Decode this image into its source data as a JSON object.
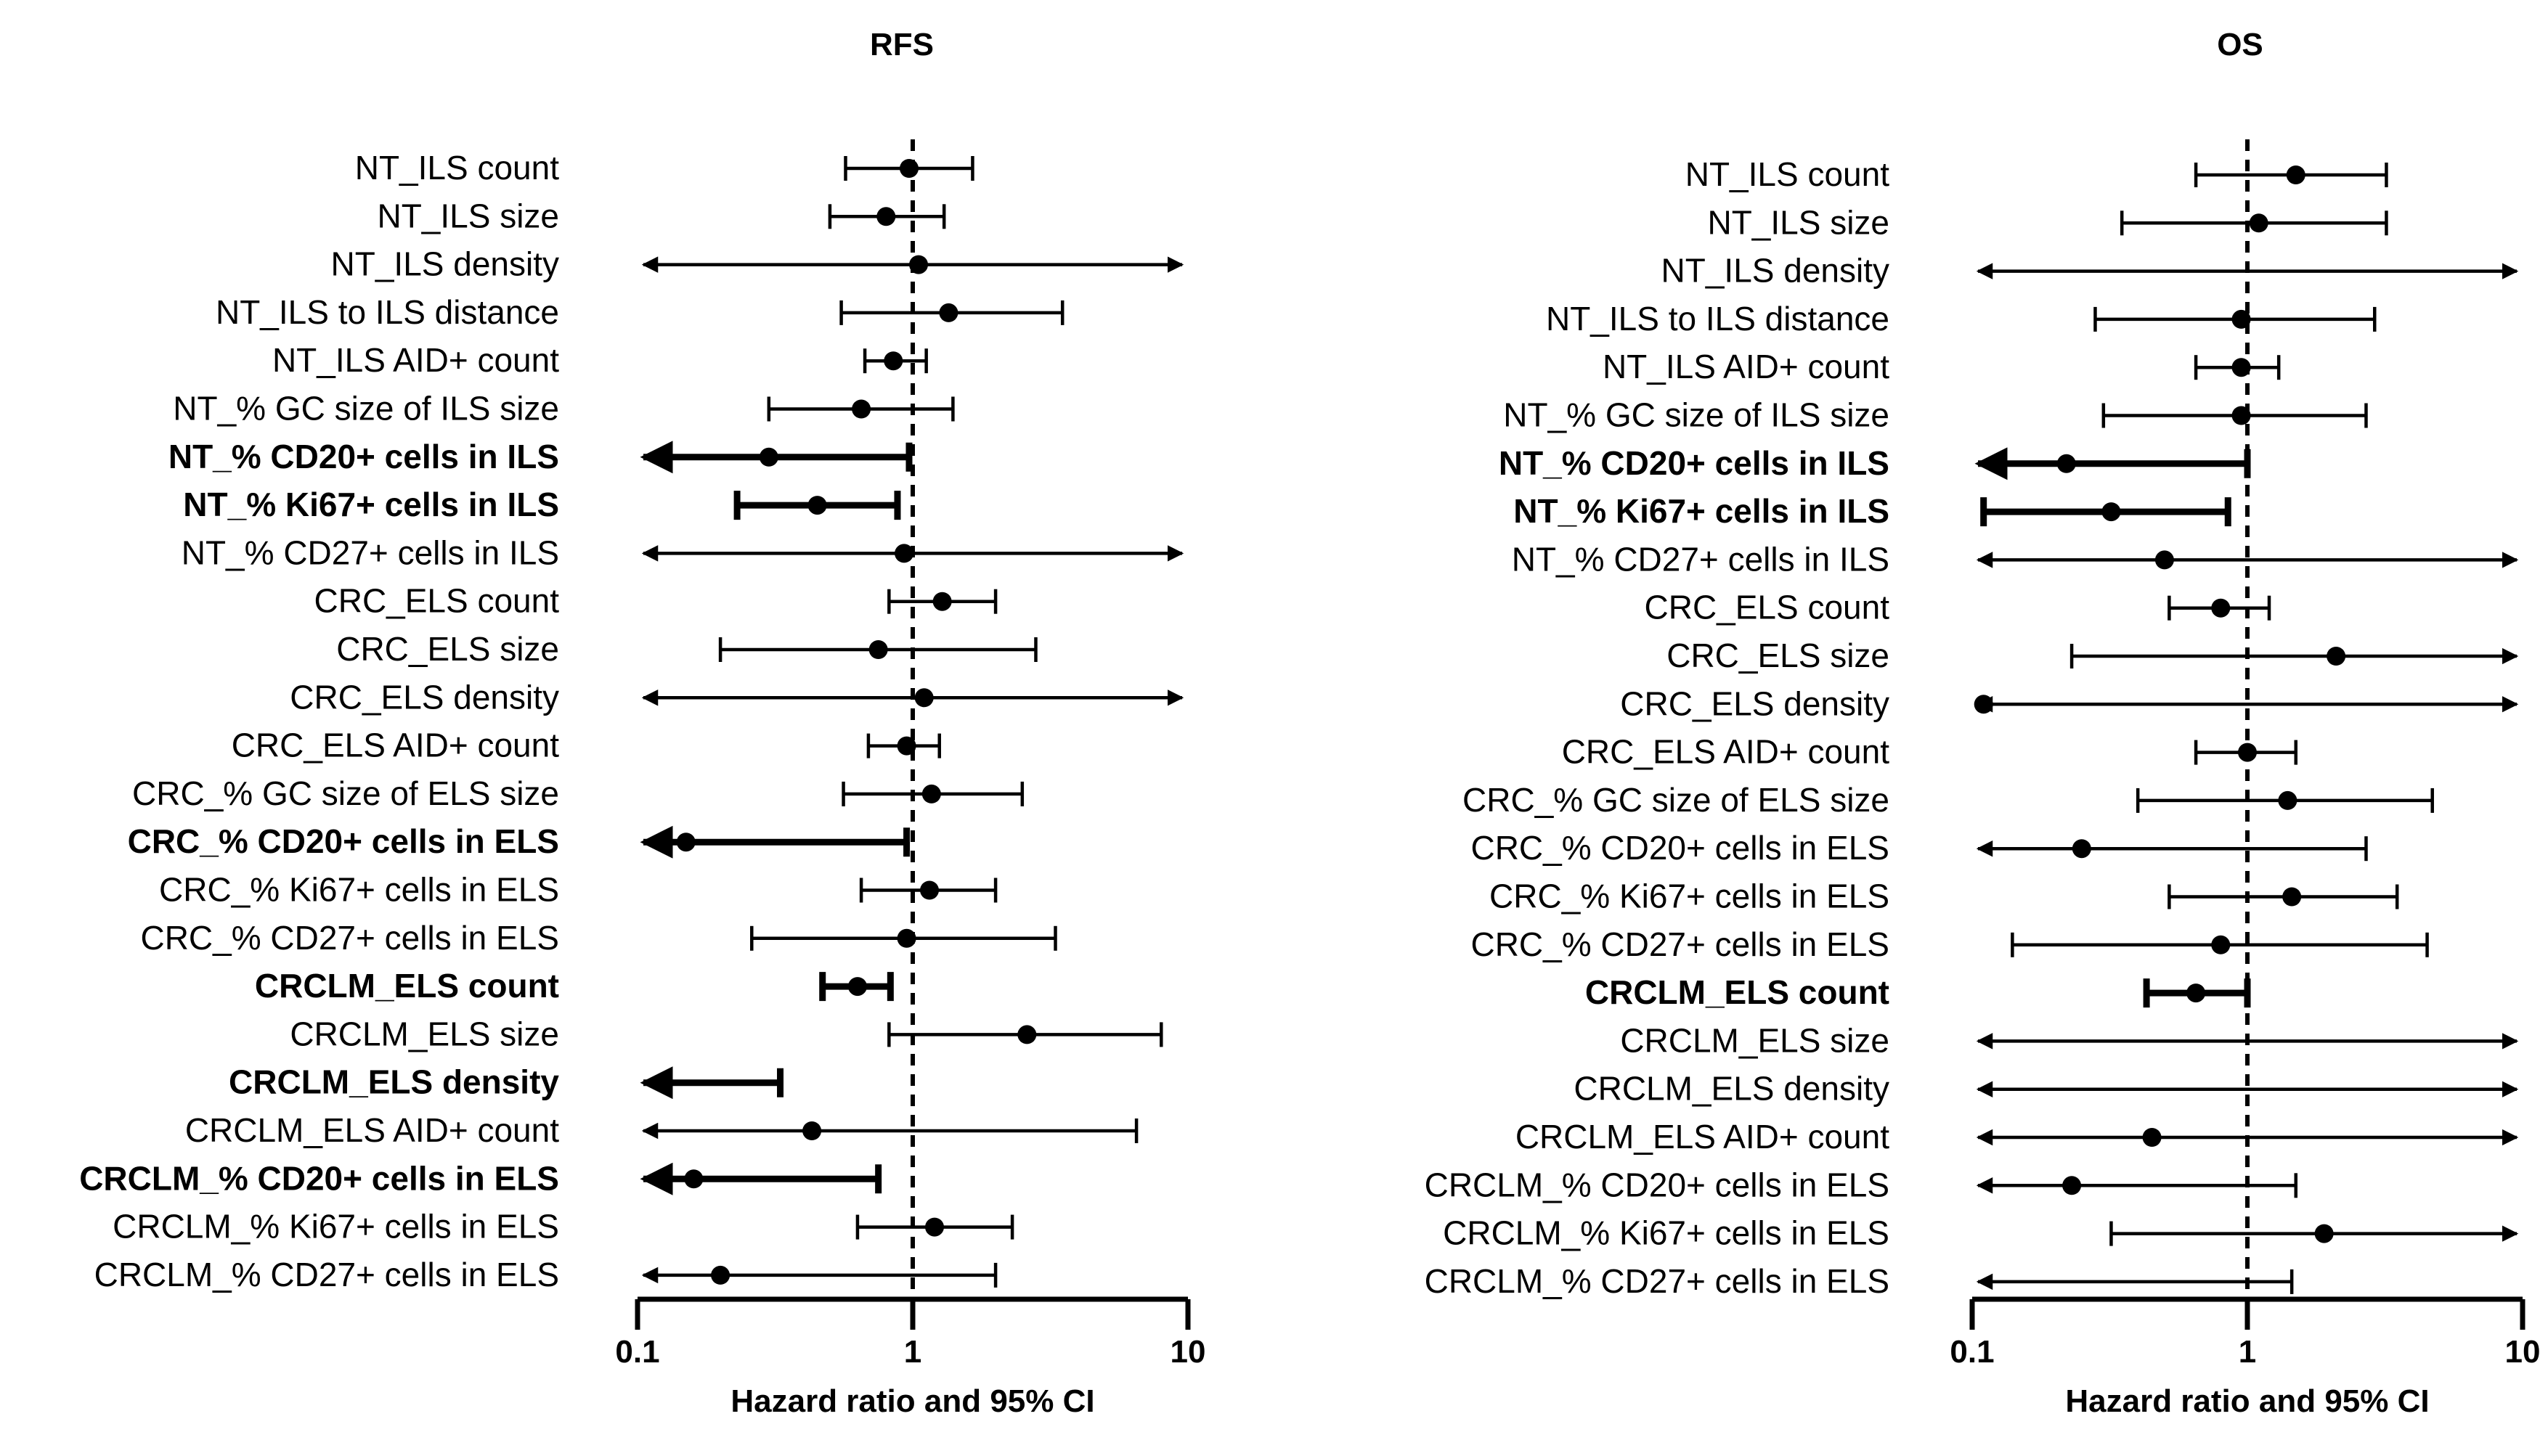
{
  "chart_data": [
    {
      "type": "forest",
      "title": "RFS",
      "xlabel": "Hazard ratio and 95% CI",
      "xscale": "log",
      "xlim": [
        0.1,
        10
      ],
      "xticks": [
        "0.1",
        "1",
        "10"
      ],
      "reference_line": 1,
      "rows": [
        {
          "label": "NT_ILS count",
          "hr": 0.97,
          "lo": 0.57,
          "hi": 1.65,
          "bold": false,
          "arrow_lo": false,
          "arrow_hi": false
        },
        {
          "label": "NT_ILS size",
          "hr": 0.8,
          "lo": 0.5,
          "hi": 1.3,
          "bold": false,
          "arrow_lo": false,
          "arrow_hi": false
        },
        {
          "label": "NT_ILS density",
          "hr": 1.05,
          "lo": null,
          "hi": null,
          "bold": false,
          "arrow_lo": true,
          "arrow_hi": true
        },
        {
          "label": "NT_ILS to ILS distance",
          "hr": 1.35,
          "lo": 0.55,
          "hi": 3.5,
          "bold": false,
          "arrow_lo": false,
          "arrow_hi": false
        },
        {
          "label": "NT_ILS AID+ count",
          "hr": 0.85,
          "lo": 0.67,
          "hi": 1.12,
          "bold": false,
          "arrow_lo": false,
          "arrow_hi": false
        },
        {
          "label": "NT_% GC size of ILS size",
          "hr": 0.65,
          "lo": 0.3,
          "hi": 1.4,
          "bold": false,
          "arrow_lo": false,
          "arrow_hi": false
        },
        {
          "label": "NT_% CD20+ cells in ILS",
          "hr": 0.3,
          "lo": null,
          "hi": 0.97,
          "bold": true,
          "arrow_lo": true,
          "arrow_hi": false
        },
        {
          "label": "NT_% Ki67+ cells in ILS",
          "hr": 0.45,
          "lo": 0.23,
          "hi": 0.88,
          "bold": true,
          "arrow_lo": false,
          "arrow_hi": false
        },
        {
          "label": "NT_% CD27+ cells in ILS",
          "hr": 0.93,
          "lo": null,
          "hi": null,
          "bold": false,
          "arrow_lo": true,
          "arrow_hi": true
        },
        {
          "label": "CRC_ELS count",
          "hr": 1.28,
          "lo": 0.82,
          "hi": 2.0,
          "bold": false,
          "arrow_lo": false,
          "arrow_hi": false
        },
        {
          "label": "CRC_ELS size",
          "hr": 0.75,
          "lo": 0.2,
          "hi": 2.8,
          "bold": false,
          "arrow_lo": false,
          "arrow_hi": false
        },
        {
          "label": "CRC_ELS density",
          "hr": 1.1,
          "lo": null,
          "hi": null,
          "bold": false,
          "arrow_lo": true,
          "arrow_hi": true
        },
        {
          "label": "CRC_ELS AID+ count",
          "hr": 0.95,
          "lo": 0.69,
          "hi": 1.25,
          "bold": false,
          "arrow_lo": false,
          "arrow_hi": false
        },
        {
          "label": "CRC_% GC size of ELS size",
          "hr": 1.17,
          "lo": 0.56,
          "hi": 2.5,
          "bold": false,
          "arrow_lo": false,
          "arrow_hi": false
        },
        {
          "label": "CRC_% CD20+ cells in ELS",
          "hr": 0.15,
          "lo": null,
          "hi": 0.95,
          "bold": true,
          "arrow_lo": true,
          "arrow_hi": false
        },
        {
          "label": "CRC_% Ki67+ cells in ELS",
          "hr": 1.15,
          "lo": 0.65,
          "hi": 2.0,
          "bold": false,
          "arrow_lo": false,
          "arrow_hi": false
        },
        {
          "label": "CRC_% CD27+ cells in ELS",
          "hr": 0.95,
          "lo": 0.26,
          "hi": 3.3,
          "bold": false,
          "arrow_lo": false,
          "arrow_hi": false
        },
        {
          "label": "CRCLM_ELS count",
          "hr": 0.63,
          "lo": 0.47,
          "hi": 0.83,
          "bold": true,
          "arrow_lo": false,
          "arrow_hi": false
        },
        {
          "label": "CRCLM_ELS size",
          "hr": 2.6,
          "lo": 0.82,
          "hi": 8.0,
          "bold": false,
          "arrow_lo": false,
          "arrow_hi": false
        },
        {
          "label": "CRCLM_ELS density",
          "hr": null,
          "lo": null,
          "hi": 0.33,
          "bold": true,
          "arrow_lo": true,
          "arrow_hi": false
        },
        {
          "label": "CRCLM_ELS AID+ count",
          "hr": 0.43,
          "lo": null,
          "hi": 6.5,
          "bold": false,
          "arrow_lo": true,
          "arrow_hi": false
        },
        {
          "label": "CRCLM_% CD20+ cells in ELS",
          "hr": 0.16,
          "lo": null,
          "hi": 0.75,
          "bold": true,
          "arrow_lo": true,
          "arrow_hi": false
        },
        {
          "label": "CRCLM_% Ki67+ cells in ELS",
          "hr": 1.2,
          "lo": 0.63,
          "hi": 2.3,
          "bold": false,
          "arrow_lo": false,
          "arrow_hi": false
        },
        {
          "label": "CRCLM_% CD27+ cells in ELS",
          "hr": 0.2,
          "lo": null,
          "hi": 2.0,
          "bold": false,
          "arrow_lo": true,
          "arrow_hi": false
        }
      ]
    },
    {
      "type": "forest",
      "title": "OS",
      "xlabel": "Hazard ratio and 95% CI",
      "xscale": "log",
      "xlim": [
        0.1,
        10
      ],
      "xticks": [
        "0.1",
        "1",
        "10"
      ],
      "reference_line": 1,
      "rows": [
        {
          "label": "NT_ILS count",
          "hr": 1.5,
          "lo": 0.65,
          "hi": 3.2,
          "bold": false,
          "arrow_lo": false,
          "arrow_hi": false
        },
        {
          "label": "NT_ILS size",
          "hr": 1.1,
          "lo": 0.35,
          "hi": 3.2,
          "bold": false,
          "arrow_lo": false,
          "arrow_hi": false
        },
        {
          "label": "NT_ILS density",
          "hr": null,
          "lo": null,
          "hi": null,
          "bold": false,
          "arrow_lo": true,
          "arrow_hi": true
        },
        {
          "label": "NT_ILS to ILS distance",
          "hr": 0.95,
          "lo": 0.28,
          "hi": 2.9,
          "bold": false,
          "arrow_lo": false,
          "arrow_hi": false
        },
        {
          "label": "NT_ILS AID+ count",
          "hr": 0.95,
          "lo": 0.65,
          "hi": 1.3,
          "bold": false,
          "arrow_lo": false,
          "arrow_hi": false
        },
        {
          "label": "NT_% GC size of ILS size",
          "hr": 0.95,
          "lo": 0.3,
          "hi": 2.7,
          "bold": false,
          "arrow_lo": false,
          "arrow_hi": false
        },
        {
          "label": "NT_% CD20+ cells in ILS",
          "hr": 0.22,
          "lo": null,
          "hi": 1.0,
          "bold": true,
          "arrow_lo": true,
          "arrow_hi": false
        },
        {
          "label": "NT_% Ki67+ cells in ILS",
          "hr": 0.32,
          "lo": 0.11,
          "hi": 0.85,
          "bold": true,
          "arrow_lo": false,
          "arrow_hi": false
        },
        {
          "label": "NT_% CD27+ cells in ILS",
          "hr": 0.5,
          "lo": null,
          "hi": null,
          "bold": false,
          "arrow_lo": true,
          "arrow_hi": true
        },
        {
          "label": "CRC_ELS count",
          "hr": 0.8,
          "lo": 0.52,
          "hi": 1.2,
          "bold": false,
          "arrow_lo": false,
          "arrow_hi": false
        },
        {
          "label": "CRC_ELS size",
          "hr": 2.1,
          "lo": 0.23,
          "hi": null,
          "bold": false,
          "arrow_lo": false,
          "arrow_hi": true
        },
        {
          "label": "CRC_ELS density",
          "hr": 0.11,
          "lo": null,
          "hi": null,
          "bold": false,
          "arrow_lo": true,
          "arrow_hi": true
        },
        {
          "label": "CRC_ELS AID+ count",
          "hr": 1.0,
          "lo": 0.65,
          "hi": 1.5,
          "bold": false,
          "arrow_lo": false,
          "arrow_hi": false
        },
        {
          "label": "CRC_% GC size of ELS size",
          "hr": 1.4,
          "lo": 0.4,
          "hi": 4.7,
          "bold": false,
          "arrow_lo": false,
          "arrow_hi": false
        },
        {
          "label": "CRC_% CD20+ cells in ELS",
          "hr": 0.25,
          "lo": null,
          "hi": 2.7,
          "bold": false,
          "arrow_lo": true,
          "arrow_hi": false
        },
        {
          "label": "CRC_% Ki67+ cells in ELS",
          "hr": 1.45,
          "lo": 0.52,
          "hi": 3.5,
          "bold": false,
          "arrow_lo": false,
          "arrow_hi": false
        },
        {
          "label": "CRC_% CD27+ cells in ELS",
          "hr": 0.8,
          "lo": 0.14,
          "hi": 4.5,
          "bold": false,
          "arrow_lo": false,
          "arrow_hi": false
        },
        {
          "label": "CRCLM_ELS count",
          "hr": 0.65,
          "lo": 0.43,
          "hi": 1.0,
          "bold": true,
          "arrow_lo": false,
          "arrow_hi": false
        },
        {
          "label": "CRCLM_ELS size",
          "hr": null,
          "lo": null,
          "hi": null,
          "bold": false,
          "arrow_lo": true,
          "arrow_hi": true
        },
        {
          "label": "CRCLM_ELS density",
          "hr": null,
          "lo": null,
          "hi": null,
          "bold": false,
          "arrow_lo": true,
          "arrow_hi": true
        },
        {
          "label": "CRCLM_ELS AID+ count",
          "hr": 0.45,
          "lo": null,
          "hi": null,
          "bold": false,
          "arrow_lo": true,
          "arrow_hi": true
        },
        {
          "label": "CRCLM_% CD20+ cells in ELS",
          "hr": 0.23,
          "lo": null,
          "hi": 1.5,
          "bold": false,
          "arrow_lo": true,
          "arrow_hi": false
        },
        {
          "label": "CRCLM_% Ki67+ cells in ELS",
          "hr": 1.9,
          "lo": 0.32,
          "hi": null,
          "bold": false,
          "arrow_lo": false,
          "arrow_hi": true
        },
        {
          "label": "CRCLM_% CD27+ cells in ELS",
          "hr": null,
          "lo": null,
          "hi": 1.45,
          "bold": false,
          "arrow_lo": true,
          "arrow_hi": false
        }
      ]
    }
  ]
}
